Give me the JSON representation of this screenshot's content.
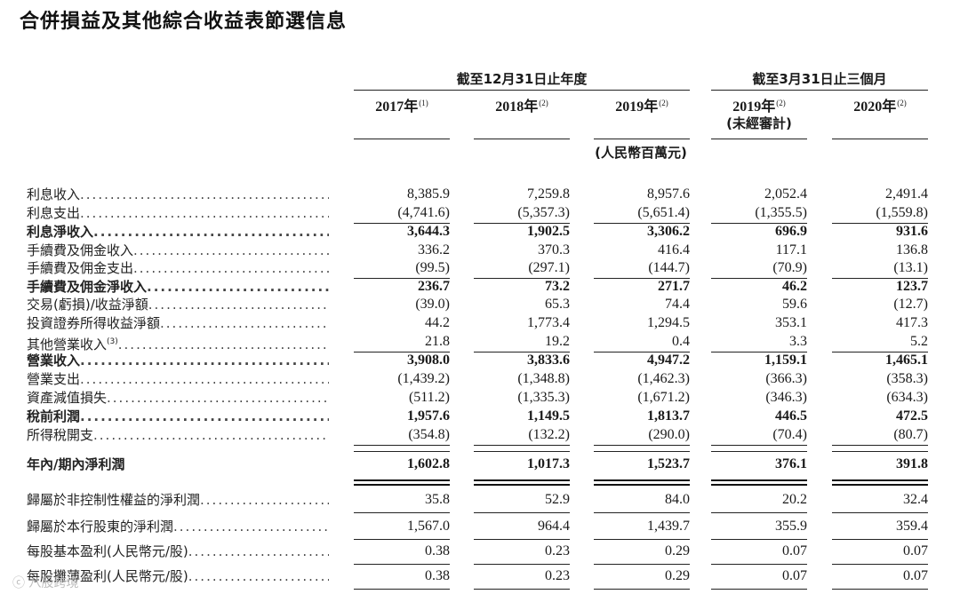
{
  "title": "合併損益及其他綜合收益表節選信息",
  "groups": [
    {
      "label": "截至12月31日止年度"
    },
    {
      "label": "截至3月31日止三個月"
    }
  ],
  "columns": [
    {
      "year": "2017年",
      "note": "(1)",
      "sub": ""
    },
    {
      "year": "2018年",
      "note": "(2)",
      "sub": ""
    },
    {
      "year": "2019年",
      "note": "(2)",
      "sub": ""
    },
    {
      "year": "2019年",
      "note": "(2)",
      "sub": "(未經審計)"
    },
    {
      "year": "2020年",
      "note": "(2)",
      "sub": ""
    }
  ],
  "unit": "(人民幣百萬元)",
  "rows": [
    {
      "label": "利息收入",
      "note": "",
      "bold": false,
      "values": [
        "8,385.9",
        "7,259.8",
        "8,957.6",
        "2,052.4",
        "2,491.4"
      ]
    },
    {
      "label": "利息支出",
      "note": "",
      "bold": false,
      "values": [
        "(4,741.6)",
        "(5,357.3)",
        "(5,651.4)",
        "(1,355.5)",
        "(1,559.8)"
      ]
    },
    {
      "label": "利息淨收入",
      "note": "",
      "bold": true,
      "values": [
        "3,644.3",
        "1,902.5",
        "3,306.2",
        "696.9",
        "931.6"
      ]
    },
    {
      "label": "手續費及佣金收入",
      "note": "",
      "bold": false,
      "values": [
        "336.2",
        "370.3",
        "416.4",
        "117.1",
        "136.8"
      ]
    },
    {
      "label": "手續費及佣金支出",
      "note": "",
      "bold": false,
      "values": [
        "(99.5)",
        "(297.1)",
        "(144.7)",
        "(70.9)",
        "(13.1)"
      ]
    },
    {
      "label": "手續費及佣金淨收入",
      "note": "",
      "bold": true,
      "values": [
        "236.7",
        "73.2",
        "271.7",
        "46.2",
        "123.7"
      ]
    },
    {
      "label": "交易(虧損)/收益淨額",
      "note": "",
      "bold": false,
      "values": [
        "(39.0)",
        "65.3",
        "74.4",
        "59.6",
        "(12.7)"
      ]
    },
    {
      "label": "投資證券所得收益淨額",
      "note": "",
      "bold": false,
      "values": [
        "44.2",
        "1,773.4",
        "1,294.5",
        "353.1",
        "417.3"
      ]
    },
    {
      "label": "其他營業收入",
      "note": "(3)",
      "bold": false,
      "values": [
        "21.8",
        "19.2",
        "0.4",
        "3.3",
        "5.2"
      ]
    },
    {
      "label": "營業收入",
      "note": "",
      "bold": true,
      "values": [
        "3,908.0",
        "3,833.6",
        "4,947.2",
        "1,159.1",
        "1,465.1"
      ]
    },
    {
      "label": "營業支出",
      "note": "",
      "bold": false,
      "values": [
        "(1,439.2)",
        "(1,348.8)",
        "(1,462.3)",
        "(366.3)",
        "(358.3)"
      ]
    },
    {
      "label": "資產減值損失",
      "note": "",
      "bold": false,
      "values": [
        "(511.2)",
        "(1,335.3)",
        "(1,671.2)",
        "(346.3)",
        "(634.3)"
      ]
    },
    {
      "label": "稅前利潤",
      "note": "",
      "bold": true,
      "values": [
        "1,957.6",
        "1,149.5",
        "1,813.7",
        "446.5",
        "472.5"
      ]
    },
    {
      "label": "所得稅開支",
      "note": "",
      "bold": false,
      "values": [
        "(354.8)",
        "(132.2)",
        "(290.0)",
        "(70.4)",
        "(80.7)"
      ]
    },
    {
      "label": "年內/期內淨利潤",
      "note": "",
      "bold": true,
      "values": [
        "1,602.8",
        "1,017.3",
        "1,523.7",
        "376.1",
        "391.8"
      ]
    },
    {
      "label": "歸屬於非控制性權益的淨利潤",
      "note": "",
      "bold": false,
      "values": [
        "35.8",
        "52.9",
        "84.0",
        "20.2",
        "32.4"
      ]
    },
    {
      "label": "歸屬於本行股東的淨利潤",
      "note": "",
      "bold": false,
      "values": [
        "1,567.0",
        "964.4",
        "1,439.7",
        "355.9",
        "359.4"
      ]
    },
    {
      "label": "每股基本盈利(人民幣元/股)",
      "note": "",
      "bold": false,
      "values": [
        "0.38",
        "0.23",
        "0.29",
        "0.07",
        "0.07"
      ]
    },
    {
      "label": "每股攤薄盈利(人民幣元/股)",
      "note": "",
      "bold": false,
      "values": [
        "0.38",
        "0.23",
        "0.29",
        "0.07",
        "0.07"
      ]
    }
  ],
  "watermark": "八股跨境"
}
